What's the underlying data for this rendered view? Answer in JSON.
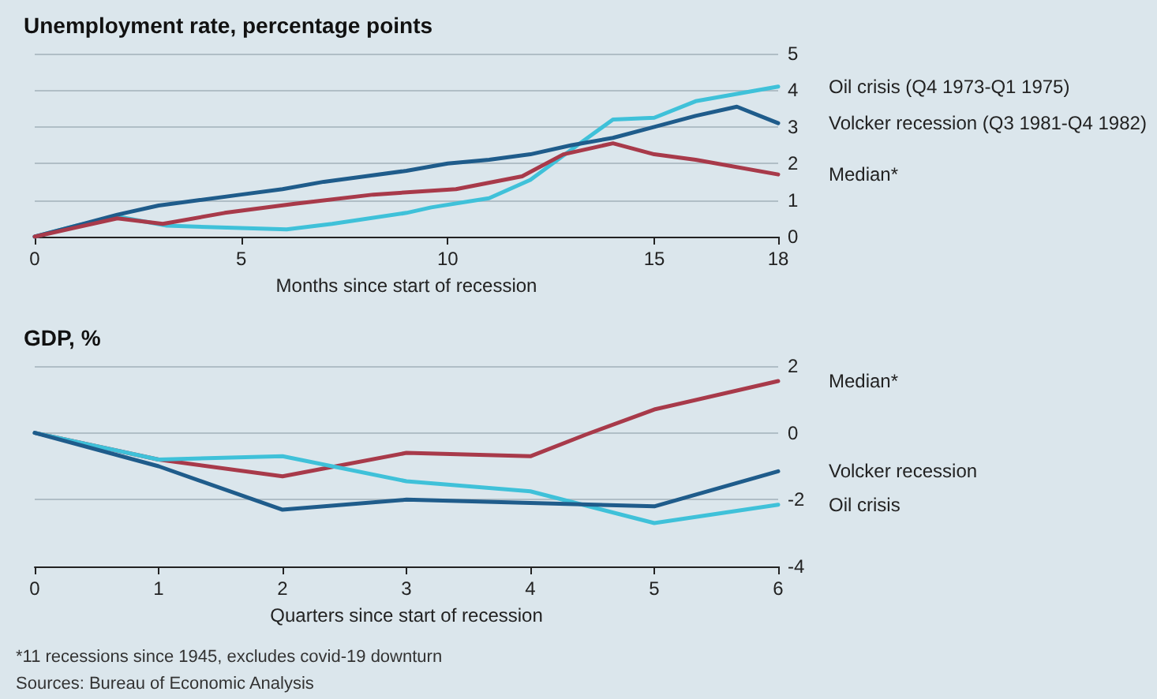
{
  "chart_data": [
    {
      "type": "line",
      "title": "Unemployment rate, percentage points",
      "xlabel": "Months since start of recession",
      "xlim": [
        0,
        18
      ],
      "xticks": [
        0,
        5,
        10,
        15,
        18
      ],
      "ylim": [
        0,
        5
      ],
      "yticks": [
        0,
        1,
        2,
        3,
        4,
        5
      ],
      "grid": "y",
      "legend": false,
      "marker": "none",
      "line_style": "solid",
      "series": [
        {
          "name": "Oil crisis (Q4 1973-Q1 1975)",
          "color": "#3fc1d9",
          "x": [
            0,
            1,
            2,
            3.2,
            6.1,
            7.2,
            9,
            9.6,
            11,
            12,
            13.2,
            14,
            15,
            16,
            18
          ],
          "values": [
            0,
            0.3,
            0.55,
            0.3,
            0.2,
            0.35,
            0.65,
            0.8,
            1.05,
            1.55,
            2.55,
            3.2,
            3.25,
            3.7,
            4.1
          ]
        },
        {
          "name": "Volcker recession (Q3 1981-Q4 1982)",
          "color": "#1f5c8b",
          "x": [
            0,
            1,
            2,
            3,
            4,
            5,
            6,
            7,
            8,
            9,
            10,
            11,
            12,
            13,
            14,
            15,
            16,
            17,
            18
          ],
          "values": [
            0,
            0.3,
            0.6,
            0.85,
            1.0,
            1.15,
            1.3,
            1.5,
            1.65,
            1.8,
            2.0,
            2.1,
            2.25,
            2.5,
            2.7,
            3.0,
            3.3,
            3.55,
            3.1
          ]
        },
        {
          "name": "Median*",
          "color": "#a83a4a",
          "x": [
            0,
            1,
            2,
            3.1,
            4.6,
            6.3,
            8.2,
            10.2,
            11.8,
            12.8,
            14,
            15,
            16,
            18
          ],
          "values": [
            0,
            0.25,
            0.5,
            0.35,
            0.65,
            0.9,
            1.15,
            1.3,
            1.65,
            2.25,
            2.55,
            2.25,
            2.1,
            1.7
          ]
        }
      ]
    },
    {
      "type": "line",
      "title": "GDP, %",
      "xlabel": "Quarters since start of recession",
      "xlim": [
        0,
        6
      ],
      "xticks": [
        0,
        1,
        2,
        3,
        4,
        5,
        6
      ],
      "ylim": [
        -4,
        2
      ],
      "yticks": [
        -4,
        -2,
        0,
        2
      ],
      "grid": "y",
      "legend": false,
      "marker": "none",
      "line_style": "solid",
      "annotations": [
        "*11 recessions since 1945, excludes covid-19 downturn",
        "Sources: Bureau of Economic Analysis"
      ],
      "series": [
        {
          "name": "Median*",
          "color": "#a83a4a",
          "x": [
            0,
            1,
            2,
            3,
            4,
            4.45,
            5,
            6
          ],
          "values": [
            0,
            -0.8,
            -1.3,
            -0.6,
            -0.7,
            -0.05,
            0.7,
            1.55
          ]
        },
        {
          "name": "Oil crisis",
          "color": "#3fc1d9",
          "x": [
            0,
            1,
            2,
            3,
            4,
            5,
            6
          ],
          "values": [
            0,
            -0.8,
            -0.7,
            -1.45,
            -1.75,
            -2.7,
            -2.15
          ]
        },
        {
          "name": "Volcker recession",
          "color": "#1f5c8b",
          "x": [
            0,
            1,
            2,
            3,
            4,
            5,
            6
          ],
          "values": [
            0,
            -1.0,
            -2.3,
            -2.0,
            -2.1,
            -2.2,
            -1.15
          ]
        }
      ]
    }
  ]
}
